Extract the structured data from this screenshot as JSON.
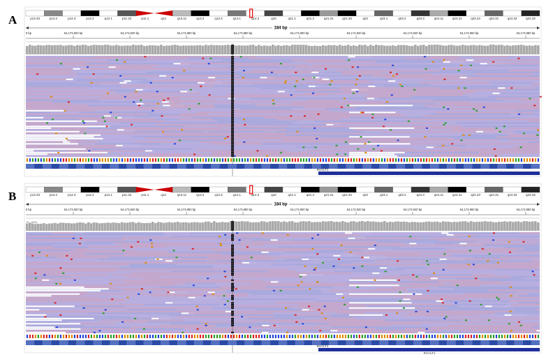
{
  "ideogram": [
    "p13.33",
    "p13.2",
    "p12.3",
    "p12.2",
    "p12.1",
    "p11.22",
    "p11.1",
    "q12",
    "q13.11",
    "q13.2",
    "q13.3",
    "q14.1",
    "q14.2",
    "q15",
    "q21.1",
    "q21.2",
    "q21.31",
    "q21.33",
    "q22",
    "q23.1",
    "q23.2",
    "q23.3",
    "q24.11",
    "q24.21",
    "q24.23",
    "q24.31",
    "q24.32",
    "q24.33"
  ],
  "panels": [
    {
      "label": "A",
      "scale": "184 bp",
      "coords": [
        "0 bp",
        "64,173,820 bp",
        "64,173,840 bp",
        "64,173,860 bp",
        "64,173,880 bp",
        "64,173,900 bp",
        "64,173,920 bp",
        "64,173,940 bp",
        "64,173,960 bp",
        "64,173,980 bp"
      ],
      "gene": "RXYLT1"
    },
    {
      "label": "B",
      "scale": "184 bp",
      "coverage_range": "[0 - 204]",
      "coords": [
        "0 bp",
        "64,173,820 bp",
        "64,173,840 bp",
        "64,173,860 bp",
        "64,173,880 bp",
        "64,173,900 bp",
        "64,173,920 bp",
        "64,173,940 bp",
        "64,173,960 bp",
        "64,173,980 bp"
      ],
      "gene": "RXYLT1"
    }
  ]
}
